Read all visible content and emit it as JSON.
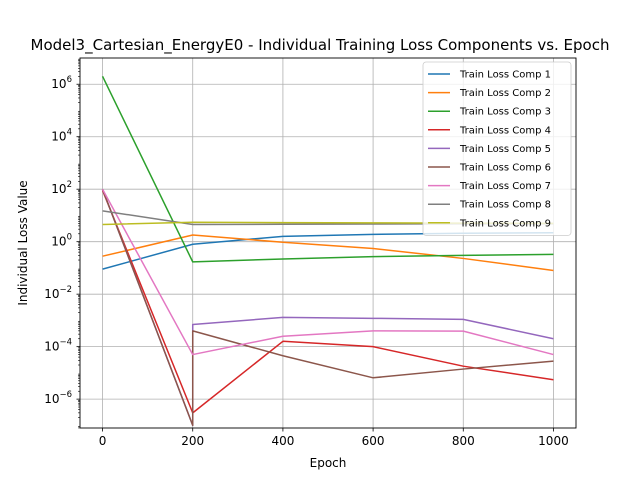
{
  "chart_data": {
    "type": "line",
    "title": "Model3_Cartesian_EnergyE0 - Individual Training Loss Components vs. Epoch",
    "xlabel": "Epoch",
    "ylabel": "Individual Loss Value",
    "y_scale": "log",
    "xlim": [
      -50,
      1050
    ],
    "ylim_exp": [
      -7.1,
      7.0
    ],
    "xticks": [
      0,
      200,
      400,
      600,
      800,
      1000
    ],
    "yticks_exp": [
      -6,
      -4,
      -2,
      0,
      2,
      4,
      6
    ],
    "grid": true,
    "legend_position": "top-right",
    "x": [
      0,
      200,
      400,
      600,
      800,
      1000
    ],
    "series": [
      {
        "name": "Train Loss Comp 1",
        "color": "#1f77b4",
        "points": [
          [
            0,
            0.09
          ],
          [
            200,
            0.8
          ],
          [
            400,
            1.6
          ],
          [
            600,
            1.9
          ],
          [
            800,
            2.1
          ],
          [
            1000,
            2.2
          ]
        ]
      },
      {
        "name": "Train Loss Comp 2",
        "color": "#ff7f0e",
        "points": [
          [
            0,
            0.28
          ],
          [
            200,
            1.8
          ],
          [
            400,
            0.95
          ],
          [
            600,
            0.55
          ],
          [
            800,
            0.23
          ],
          [
            1000,
            0.08
          ]
        ]
      },
      {
        "name": "Train Loss Comp 3",
        "color": "#2ca02c",
        "points": [
          [
            0,
            2000000
          ],
          [
            200,
            0.17
          ],
          [
            400,
            0.22
          ],
          [
            600,
            0.27
          ],
          [
            800,
            0.3
          ],
          [
            1000,
            0.33
          ]
        ]
      },
      {
        "name": "Train Loss Comp 4",
        "color": "#d62728",
        "points": [
          [
            0,
            90
          ],
          [
            200,
            3e-07
          ],
          [
            400,
            0.00016
          ],
          [
            600,
            0.0001
          ],
          [
            800,
            1.8e-05
          ],
          [
            1000,
            5.5e-06
          ]
        ]
      },
      {
        "name": "Train Loss Comp 5",
        "color": "#9467bd",
        "points": [
          [
            0,
            100
          ],
          [
            200,
            1e-07
          ],
          [
            200,
            0.0007
          ],
          [
            400,
            0.0013
          ],
          [
            600,
            0.0012
          ],
          [
            800,
            0.0011
          ],
          [
            1000,
            0.0002
          ]
        ]
      },
      {
        "name": "Train Loss Comp 6",
        "color": "#8c564b",
        "points": [
          [
            0,
            100
          ],
          [
            200,
            1e-07
          ],
          [
            200,
            0.0004
          ],
          [
            400,
            4.5e-05
          ],
          [
            600,
            6.5e-06
          ],
          [
            800,
            1.4e-05
          ],
          [
            1000,
            2.8e-05
          ]
        ]
      },
      {
        "name": "Train Loss Comp 7",
        "color": "#e377c2",
        "points": [
          [
            0,
            100
          ],
          [
            200,
            5e-05
          ],
          [
            400,
            0.00025
          ],
          [
            600,
            0.0004
          ],
          [
            800,
            0.00039
          ],
          [
            1000,
            5e-05
          ]
        ]
      },
      {
        "name": "Train Loss Comp 8",
        "color": "#7f7f7f",
        "points": [
          [
            0,
            15
          ],
          [
            200,
            4.5
          ],
          [
            400,
            4.6
          ],
          [
            600,
            4.7
          ],
          [
            800,
            4.8
          ],
          [
            1000,
            4.8
          ]
        ]
      },
      {
        "name": "Train Loss Comp 9",
        "color": "#bcbd22",
        "points": [
          [
            0,
            4.5
          ],
          [
            200,
            5.5
          ],
          [
            400,
            5.3
          ],
          [
            600,
            5.2
          ],
          [
            800,
            5.1
          ],
          [
            1000,
            5.0
          ]
        ]
      }
    ]
  }
}
